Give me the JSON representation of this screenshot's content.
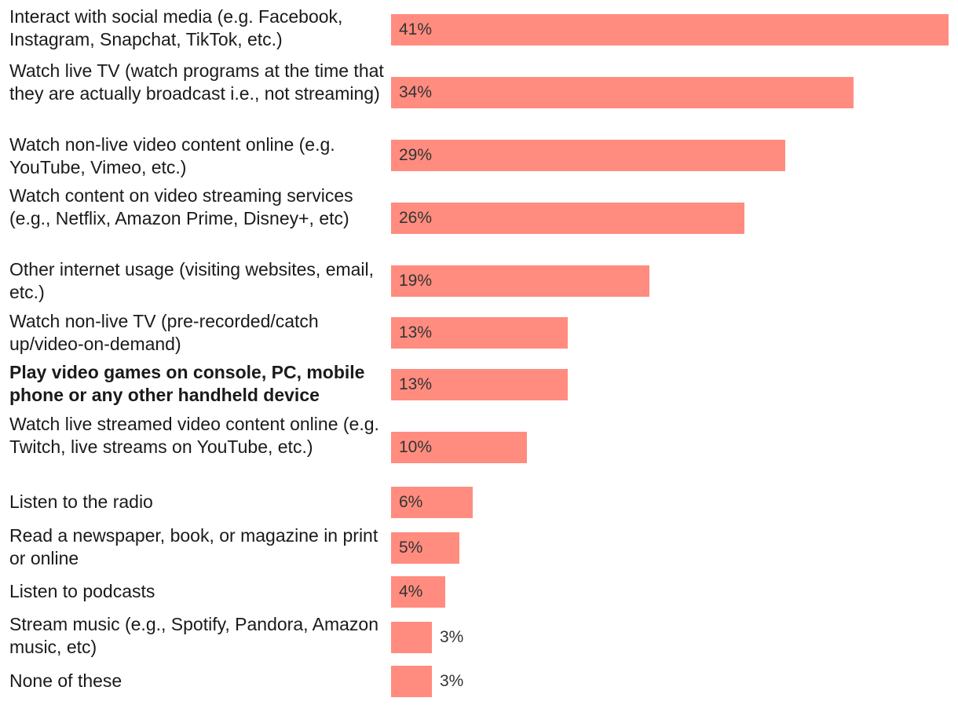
{
  "chart_data": {
    "type": "bar",
    "orientation": "horizontal",
    "title": "",
    "xlabel": "",
    "ylabel": "",
    "xlim": [
      0,
      41
    ],
    "grid": false,
    "bar_color": "#ff8c7f",
    "categories": [
      "Interact with social media (e.g. Facebook, Instagram, Snapchat, TikTok, etc.)",
      "Watch live TV (watch programs at the time that they are actually broadcast i.e., not streaming)",
      "Watch non-live video content online (e.g. YouTube, Vimeo, etc.)",
      "Watch content on video streaming services (e.g., Netflix, Amazon Prime, Disney+, etc)",
      "Other internet usage (visiting websites, email, etc.)",
      "Watch non-live TV (pre-recorded/catch up/video-on-demand)",
      "Play video games on console, PC, mobile phone or any other handheld device",
      "Watch live streamed video content online (e.g. Twitch, live streams on YouTube, etc.)",
      "Listen to the radio",
      "Read a newspaper, book, or magazine in print or online",
      "Listen to podcasts",
      "Stream music (e.g., Spotify, Pandora, Amazon music, etc)",
      "None of these"
    ],
    "values": [
      41,
      34,
      29,
      26,
      19,
      13,
      13,
      10,
      6,
      5,
      4,
      3,
      3
    ],
    "data_labels": [
      "41%",
      "34%",
      "29%",
      "26%",
      "19%",
      "13%",
      "13%",
      "10%",
      "6%",
      "5%",
      "4%",
      "3%",
      "3%"
    ],
    "highlighted_category": "Play video games on console, PC, mobile phone or any other handheld device"
  }
}
